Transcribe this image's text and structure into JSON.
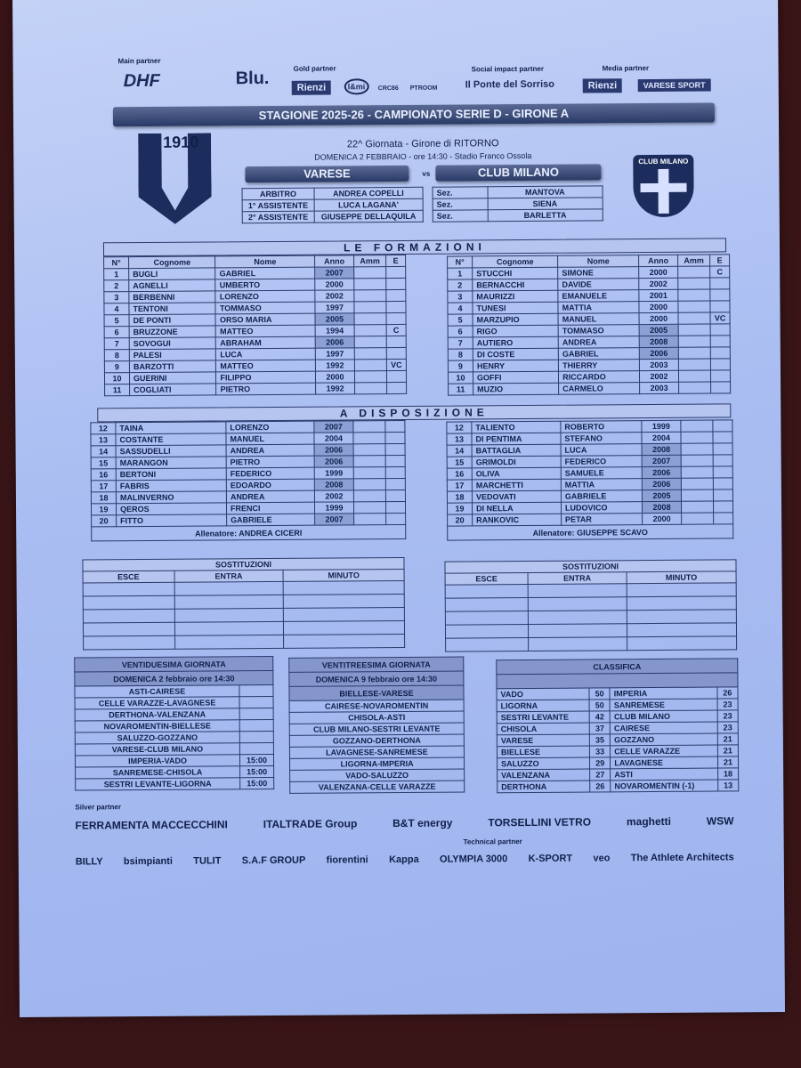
{
  "partners": {
    "main_label": "Main partner",
    "gold_label": "Gold partner",
    "social_label": "Social impact partner",
    "media_label": "Media partner",
    "main": [
      "DHF",
      "Blu."
    ],
    "gold": [
      "Rienzi",
      "l&mi",
      "CRC86",
      "PTROOM"
    ],
    "social": [
      "Il Ponte del Sorriso"
    ],
    "media": [
      "Rienzi",
      "VARESE SPORT"
    ]
  },
  "header": {
    "season": "STAGIONE 2025-26 - CAMPIONATO SERIE D - GIRONE A",
    "round": "22^ Giornata - Girone di RITORNO",
    "when": "DOMENICA 2 FEBBRAIO - ore 14:30  -  Stadio Franco Ossola",
    "home": "VARESE",
    "vs": "vs",
    "away": "CLUB MILANO",
    "home_crest_text": "1910",
    "away_crest_text": "CLUB MILANO",
    "officials": [
      {
        "role": "ARBITRO",
        "name": "ANDREA COPELLI",
        "sez": "Sez.",
        "city": "MANTOVA"
      },
      {
        "role": "1° ASSISTENTE",
        "name": "LUCA LAGANA'",
        "sez": "Sez.",
        "city": "SIENA"
      },
      {
        "role": "2° ASSISTENTE",
        "name": "GIUSEPPE DELLAQUILA",
        "sez": "Sez.",
        "city": "BARLETTA"
      }
    ]
  },
  "lineups": {
    "title": "LE FORMAZIONI",
    "bench_title": "A DISPOSIZIONE",
    "columns": [
      "N°",
      "Cognome",
      "Nome",
      "Anno",
      "Amm",
      "E"
    ],
    "home": [
      [
        "1",
        "BUGLI",
        "GABRIEL",
        "2007",
        "",
        ""
      ],
      [
        "2",
        "AGNELLI",
        "UMBERTO",
        "2000",
        "",
        ""
      ],
      [
        "3",
        "BERBENNI",
        "LORENZO",
        "2002",
        "",
        ""
      ],
      [
        "4",
        "TENTONI",
        "TOMMASO",
        "1997",
        "",
        ""
      ],
      [
        "5",
        "DE PONTI",
        "ORSO MARIA",
        "2005",
        "",
        ""
      ],
      [
        "6",
        "BRUZZONE",
        "MATTEO",
        "1994",
        "",
        "C"
      ],
      [
        "7",
        "SOVOGUI",
        "ABRAHAM",
        "2006",
        "",
        ""
      ],
      [
        "8",
        "PALESI",
        "LUCA",
        "1997",
        "",
        ""
      ],
      [
        "9",
        "BARZOTTI",
        "MATTEO",
        "1992",
        "",
        "VC"
      ],
      [
        "10",
        "GUERINI",
        "FILIPPO",
        "2000",
        "",
        ""
      ],
      [
        "11",
        "COGLIATI",
        "PIETRO",
        "1992",
        "",
        ""
      ]
    ],
    "away": [
      [
        "1",
        "STUCCHI",
        "SIMONE",
        "2000",
        "",
        "C"
      ],
      [
        "2",
        "BERNACCHI",
        "DAVIDE",
        "2002",
        "",
        ""
      ],
      [
        "3",
        "MAURIZZI",
        "EMANUELE",
        "2001",
        "",
        ""
      ],
      [
        "4",
        "TUNESI",
        "MATTIA",
        "2000",
        "",
        ""
      ],
      [
        "5",
        "MARZUPIO",
        "MANUEL",
        "2000",
        "",
        "VC"
      ],
      [
        "6",
        "RIGO",
        "TOMMASO",
        "2005",
        "",
        ""
      ],
      [
        "7",
        "AUTIERO",
        "ANDREA",
        "2008",
        "",
        ""
      ],
      [
        "8",
        "DI COSTE",
        "GABRIEL",
        "2006",
        "",
        ""
      ],
      [
        "9",
        "HENRY",
        "THIERRY",
        "2003",
        "",
        ""
      ],
      [
        "10",
        "GOFFI",
        "RICCARDO",
        "2002",
        "",
        ""
      ],
      [
        "11",
        "MUZIO",
        "CARMELO",
        "2003",
        "",
        ""
      ]
    ],
    "home_bench": [
      [
        "12",
        "TAINA",
        "LORENZO",
        "2007",
        "",
        ""
      ],
      [
        "13",
        "COSTANTE",
        "MANUEL",
        "2004",
        "",
        ""
      ],
      [
        "14",
        "SASSUDELLI",
        "ANDREA",
        "2006",
        "",
        ""
      ],
      [
        "15",
        "MARANGON",
        "PIETRO",
        "2006",
        "",
        ""
      ],
      [
        "16",
        "BERTONI",
        "FEDERICO",
        "1999",
        "",
        ""
      ],
      [
        "17",
        "FABRIS",
        "EDOARDO",
        "2008",
        "",
        ""
      ],
      [
        "18",
        "MALINVERNO",
        "ANDREA",
        "2002",
        "",
        ""
      ],
      [
        "19",
        "QEROS",
        "FRENCI",
        "1999",
        "",
        ""
      ],
      [
        "20",
        "FITTO",
        "GABRIELE",
        "2007",
        "",
        ""
      ]
    ],
    "away_bench": [
      [
        "12",
        "TALIENTO",
        "ROBERTO",
        "1999",
        "",
        ""
      ],
      [
        "13",
        "DI PENTIMA",
        "STEFANO",
        "2004",
        "",
        ""
      ],
      [
        "14",
        "BATTAGLIA",
        "LUCA",
        "2008",
        "",
        ""
      ],
      [
        "15",
        "GRIMOLDI",
        "FEDERICO",
        "2007",
        "",
        ""
      ],
      [
        "16",
        "OLIVA",
        "SAMUELE",
        "2006",
        "",
        ""
      ],
      [
        "17",
        "MARCHETTI",
        "MATTIA",
        "2006",
        "",
        ""
      ],
      [
        "18",
        "VEDOVATI",
        "GABRIELE",
        "2005",
        "",
        ""
      ],
      [
        "19",
        "DI NELLA",
        "LUDOVICO",
        "2008",
        "",
        ""
      ],
      [
        "20",
        "RANKOVIC",
        "PETAR",
        "2000",
        "",
        ""
      ]
    ],
    "home_coach": "Allenatore: ANDREA CICERI",
    "away_coach": "Allenatore: GIUSEPPE SCAVO"
  },
  "subs": {
    "title": "SOSTITUZIONI",
    "columns": [
      "ESCE",
      "ENTRA",
      "MINUTO"
    ]
  },
  "round22": {
    "title": "VENTIDUESIMA GIORNATA",
    "date": "DOMENICA 2 febbraio ore 14:30",
    "matches": [
      [
        "ASTI-CAIRESE",
        ""
      ],
      [
        "CELLE VARAZZE-LAVAGNESE",
        ""
      ],
      [
        "DERTHONA-VALENZANA",
        ""
      ],
      [
        "NOVAROMENTIN-BIELLESE",
        ""
      ],
      [
        "SALUZZO-GOZZANO",
        ""
      ],
      [
        "VARESE-CLUB MILANO",
        ""
      ],
      [
        "IMPERIA-VADO",
        "15:00"
      ],
      [
        "SANREMESE-CHISOLA",
        "15:00"
      ],
      [
        "SESTRI LEVANTE-LIGORNA",
        "15:00"
      ]
    ]
  },
  "round23": {
    "title": "VENTITREESIMA GIORNATA",
    "date": "DOMENICA 9 febbraio ore 14:30",
    "matches": [
      "BIELLESE-VARESE",
      "CAIRESE-NOVAROMENTIN",
      "CHISOLA-ASTI",
      "CLUB MILANO-SESTRI LEVANTE",
      "GOZZANO-DERTHONA",
      "LAVAGNESE-SANREMESE",
      "LIGORNA-IMPERIA",
      "VADO-SALUZZO",
      "VALENZANA-CELLE VARAZZE"
    ]
  },
  "standings": {
    "title": "CLASSIFICA",
    "rows": [
      [
        "VADO",
        "50",
        "IMPERIA",
        "26"
      ],
      [
        "LIGORNA",
        "50",
        "SANREMESE",
        "23"
      ],
      [
        "SESTRI LEVANTE",
        "42",
        "CLUB MILANO",
        "23"
      ],
      [
        "CHISOLA",
        "37",
        "CAIRESE",
        "23"
      ],
      [
        "VARESE",
        "35",
        "GOZZANO",
        "21"
      ],
      [
        "BIELLESE",
        "33",
        "CELLE VARAZZE",
        "21"
      ],
      [
        "SALUZZO",
        "29",
        "LAVAGNESE",
        "21"
      ],
      [
        "VALENZANA",
        "27",
        "ASTI",
        "18"
      ],
      [
        "DERTHONA",
        "26",
        "NOVAROMENTIN (-1)",
        "13"
      ]
    ]
  },
  "footer": {
    "silver_label": "Silver partner",
    "technical_label": "Technical partner",
    "silver": [
      "FERRAMENTA MACCECCHINI",
      "ITALTRADE Group",
      "B&T energy",
      "TORSELLINI VETRO",
      "maghetti",
      "WSW"
    ],
    "row2": [
      "BILLY",
      "bsimpianti",
      "TULIT",
      "S.A.F GROUP",
      "fiorentini",
      "Kappa",
      "OLYMPIA 3000",
      "K-SPORT",
      "veo",
      "The Athlete Architects"
    ]
  },
  "colors": {
    "paper": "#b0c2f2",
    "ink": "#10204a",
    "banner": "#3a4a78",
    "highlight": "#8da0d6"
  }
}
